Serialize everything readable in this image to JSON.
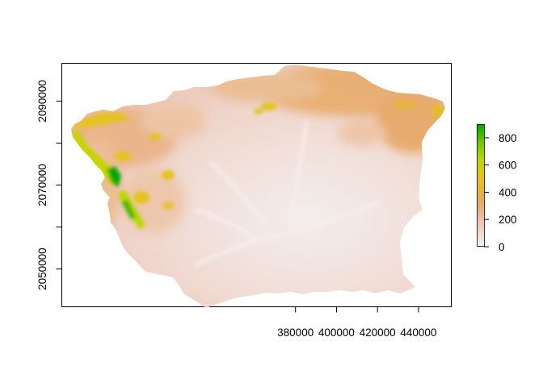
{
  "map": {
    "type": "raster",
    "x_axis": {
      "ticks": [
        380000,
        400000,
        420000,
        440000
      ],
      "tick_labels": [
        "380000",
        "400000",
        "420000",
        "440000"
      ],
      "range": [
        266000,
        456000
      ]
    },
    "y_axis": {
      "ticks": [
        2050000,
        2060000,
        2070000,
        2080000,
        2090000
      ],
      "tick_labels": [
        "2050000",
        "",
        "2070000",
        "",
        "2090000"
      ],
      "range": [
        2041000,
        2099000
      ]
    },
    "legend": {
      "placement": "right",
      "ticks": [
        0,
        200,
        400,
        600,
        800
      ],
      "tick_labels": [
        "0",
        "200",
        "400",
        "600",
        "800"
      ],
      "range": [
        0,
        900
      ],
      "colors": [
        "#f2f2f2",
        "#eec4b4",
        "#e7a96b",
        "#e5c31b",
        "#b6d800",
        "#66c500",
        "#00a600"
      ]
    }
  }
}
